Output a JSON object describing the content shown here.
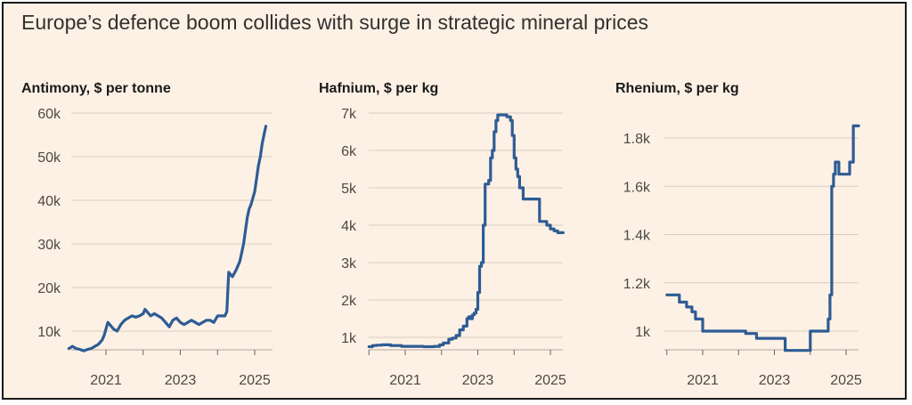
{
  "title": "Europe’s defence boom collides with surge in strategic mineral prices",
  "colors": {
    "background": "#fdf1e5",
    "line": "#2e5c94",
    "grid": "#d9ccbf",
    "text": "#4d4845"
  },
  "chart_data": [
    {
      "type": "line",
      "title": "Antimony, $ per tonne",
      "ylim": [
        5000,
        60000
      ],
      "yticks": [
        10000,
        20000,
        30000,
        40000,
        50000,
        60000
      ],
      "ytick_labels": [
        "10k",
        "20k",
        "30k",
        "40k",
        "50k",
        "60k"
      ],
      "xlim": [
        2020.0,
        2025.35
      ],
      "xticks": [
        2021,
        2023,
        2025
      ],
      "xtick_labels": [
        "2021",
        "2023",
        "2025"
      ],
      "step": false,
      "series": [
        {
          "x": [
            2020.0,
            2020.1,
            2020.2,
            2020.3,
            2020.4,
            2020.5,
            2020.6,
            2020.7,
            2020.8,
            2020.9,
            2020.95,
            2021.05,
            2021.1,
            2021.2,
            2021.3,
            2021.4,
            2021.5,
            2021.6,
            2021.7,
            2021.8,
            2021.9,
            2022.0,
            2022.05,
            2022.1,
            2022.2,
            2022.3,
            2022.4,
            2022.5,
            2022.6,
            2022.7,
            2022.8,
            2022.9,
            2022.95,
            2023.0,
            2023.1,
            2023.2,
            2023.3,
            2023.4,
            2023.5,
            2023.6,
            2023.7,
            2023.8,
            2023.9,
            2024.0,
            2024.1,
            2024.2,
            2024.25,
            2024.3,
            2024.4,
            2024.5,
            2024.55,
            2024.6,
            2024.7,
            2024.8,
            2024.85,
            2024.9,
            2025.0,
            2025.1,
            2025.15,
            2025.2,
            2025.25,
            2025.3
          ],
          "y": [
            6000,
            6500,
            6000,
            5800,
            5500,
            5800,
            6000,
            6500,
            7000,
            8000,
            9000,
            12000,
            11500,
            10500,
            10000,
            11500,
            12500,
            13000,
            13500,
            13200,
            13500,
            14000,
            15000,
            14500,
            13500,
            14000,
            13500,
            13000,
            12000,
            11000,
            12500,
            13000,
            12500,
            12000,
            11500,
            12000,
            12500,
            12000,
            11500,
            12000,
            12500,
            12500,
            12000,
            13500,
            13500,
            13500,
            14500,
            23500,
            22500,
            24000,
            25000,
            26000,
            30000,
            36000,
            38000,
            39000,
            42000,
            48000,
            50000,
            53000,
            55000,
            57000
          ]
        }
      ]
    },
    {
      "type": "line",
      "title": "Hafnium, $ per kg",
      "ylim": [
        700,
        7000
      ],
      "yticks": [
        1000,
        2000,
        3000,
        4000,
        5000,
        6000,
        7000
      ],
      "ytick_labels": [
        "1k",
        "2k",
        "3k",
        "4k",
        "5k",
        "6k",
        "7k"
      ],
      "xlim": [
        2020.0,
        2025.35
      ],
      "xticks": [
        2021,
        2023,
        2025
      ],
      "xtick_labels": [
        "2021",
        "2023",
        "2025"
      ],
      "step": true,
      "series": [
        {
          "x": [
            2020.0,
            2020.1,
            2020.2,
            2020.35,
            2020.6,
            2020.9,
            2021.2,
            2021.5,
            2021.8,
            2021.95,
            2022.05,
            2022.2,
            2022.3,
            2022.4,
            2022.5,
            2022.6,
            2022.7,
            2022.75,
            2022.8,
            2022.85,
            2022.9,
            2022.95,
            2023.0,
            2023.05,
            2023.1,
            2023.15,
            2023.2,
            2023.3,
            2023.35,
            2023.4,
            2023.45,
            2023.5,
            2023.55,
            2023.6,
            2023.8,
            2023.9,
            2023.95,
            2024.0,
            2024.05,
            2024.1,
            2024.15,
            2024.25,
            2024.6,
            2024.7,
            2024.9,
            2025.0,
            2025.1,
            2025.2,
            2025.35
          ],
          "y": [
            750,
            780,
            790,
            800,
            780,
            760,
            760,
            750,
            760,
            800,
            850,
            950,
            980,
            1050,
            1200,
            1300,
            1500,
            1550,
            1500,
            1600,
            1650,
            1750,
            2200,
            2900,
            3000,
            4000,
            5100,
            5200,
            5800,
            6000,
            6500,
            6800,
            6950,
            6950,
            6900,
            6800,
            6400,
            5800,
            5500,
            5300,
            5000,
            4700,
            4700,
            4100,
            4000,
            3900,
            3850,
            3800,
            3800
          ]
        }
      ]
    },
    {
      "type": "line",
      "title": "Rhenium, $ per kg",
      "ylim": [
        900,
        1900
      ],
      "yticks": [
        1000,
        1200,
        1400,
        1600,
        1800
      ],
      "ytick_labels": [
        "1k",
        "1.2k",
        "1.4k",
        "1.6k",
        "1.8k"
      ],
      "xlim": [
        2020.0,
        2025.35
      ],
      "xticks": [
        2021,
        2023,
        2025
      ],
      "xtick_labels": [
        "2021",
        "2023",
        "2025"
      ],
      "step": true,
      "series": [
        {
          "x": [
            2020.0,
            2020.2,
            2020.35,
            2020.55,
            2020.7,
            2020.8,
            2021.0,
            2021.3,
            2022.0,
            2022.2,
            2022.5,
            2022.8,
            2023.0,
            2023.3,
            2023.5,
            2023.7,
            2023.9,
            2024.0,
            2024.2,
            2024.45,
            2024.5,
            2024.55,
            2024.6,
            2024.65,
            2024.7,
            2024.75,
            2024.8,
            2024.85,
            2025.0,
            2025.1,
            2025.2,
            2025.35
          ],
          "y": [
            1150,
            1150,
            1120,
            1100,
            1080,
            1050,
            1000,
            1000,
            1000,
            990,
            970,
            970,
            970,
            920,
            920,
            920,
            920,
            1000,
            1000,
            1000,
            1050,
            1150,
            1600,
            1650,
            1700,
            1700,
            1650,
            1650,
            1650,
            1700,
            1850,
            1850
          ]
        }
      ]
    }
  ]
}
